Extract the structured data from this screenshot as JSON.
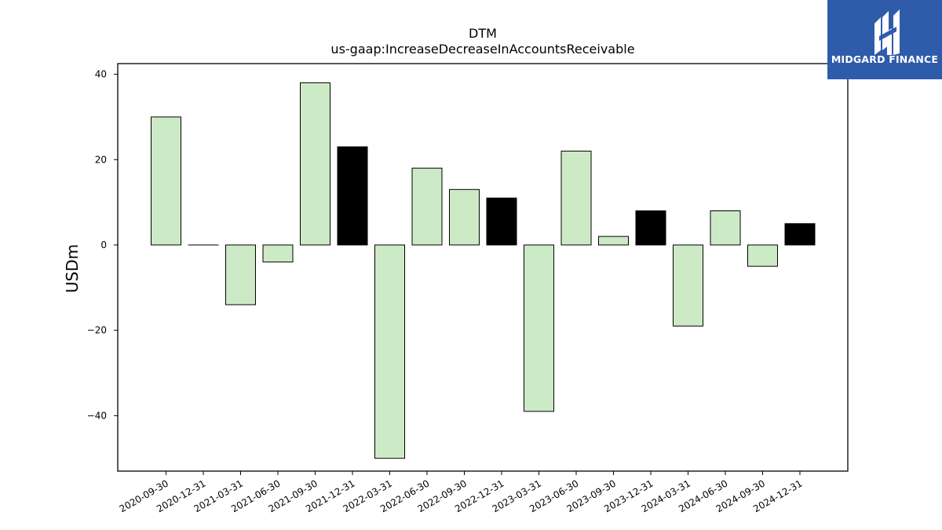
{
  "chart_data": {
    "type": "bar",
    "title": "DTM",
    "subtitle": "us-gaap:IncreaseDecreaseInAccountsReceivable",
    "xlabel": "",
    "ylabel": "USDm",
    "ylim": [
      -53,
      42.5
    ],
    "yticks": [
      -40,
      -20,
      0,
      20,
      40
    ],
    "ytick_labels": [
      "−40",
      "−20",
      "0",
      "20",
      "40"
    ],
    "grid": false,
    "categories": [
      "2020-09-30",
      "2020-12-31",
      "2021-03-31",
      "2021-06-30",
      "2021-09-30",
      "2021-12-31",
      "2022-03-31",
      "2022-06-30",
      "2022-09-30",
      "2022-12-31",
      "2023-03-31",
      "2023-06-30",
      "2023-09-30",
      "2023-12-31",
      "2024-03-31",
      "2024-06-30",
      "2024-09-30",
      "2024-12-31"
    ],
    "values": [
      30,
      0,
      -14,
      -4,
      38,
      23,
      -50,
      18,
      13,
      11,
      -39,
      22,
      2,
      8,
      -19,
      8,
      -5,
      5
    ],
    "colors": {
      "quarter": "#cdeac7",
      "year_end": "#000000",
      "edge": "#000000"
    },
    "bar_colors": [
      "quarter",
      "quarter",
      "quarter",
      "quarter",
      "quarter",
      "year_end",
      "quarter",
      "quarter",
      "quarter",
      "year_end",
      "quarter",
      "quarter",
      "quarter",
      "year_end",
      "quarter",
      "quarter",
      "quarter",
      "year_end"
    ]
  },
  "logo": {
    "text": "MIDGARD FINANCE",
    "background": "#2f5bab"
  }
}
